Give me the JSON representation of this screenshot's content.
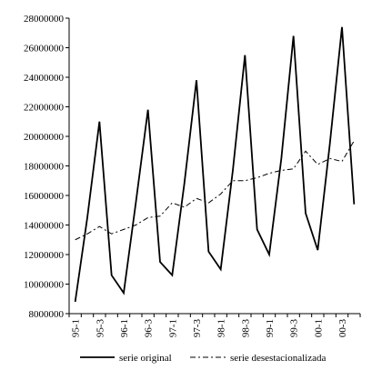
{
  "chart_data": {
    "type": "line",
    "title": "",
    "xlabel": "",
    "ylabel": "",
    "ylim": [
      8000000,
      28000000
    ],
    "yticks": [
      8000000,
      10000000,
      12000000,
      14000000,
      16000000,
      18000000,
      20000000,
      22000000,
      24000000,
      26000000,
      28000000
    ],
    "ytick_labels": [
      "8000000",
      "10000000",
      "12000000",
      "14000000",
      "16000000",
      "18000000",
      "20000000",
      "22000000",
      "24000000",
      "26000000",
      "28000000"
    ],
    "x": [
      "95-1",
      "95-2",
      "95-3",
      "95-4",
      "96-1",
      "96-2",
      "96-3",
      "96-4",
      "97-1",
      "97-2",
      "97-3",
      "97-4",
      "98-1",
      "98-2",
      "98-3",
      "98-4",
      "99-1",
      "99-2",
      "99-3",
      "99-4",
      "00-1",
      "00-2",
      "00-3",
      "00-4"
    ],
    "xtick_labels": [
      "95-1",
      "95-3",
      "96-1",
      "96-3",
      "97-1",
      "97-3",
      "98-1",
      "98-3",
      "99-1",
      "99-3",
      "00-1",
      "00-3"
    ],
    "grid": false,
    "legend_position": "bottom",
    "series": [
      {
        "name": "serie original",
        "style": "solid",
        "color": "#000000",
        "values": [
          8800000,
          14500000,
          21000000,
          10600000,
          9400000,
          15500000,
          21800000,
          11500000,
          10600000,
          16800000,
          23800000,
          12200000,
          11000000,
          17700000,
          25500000,
          13700000,
          12000000,
          18500000,
          26800000,
          14800000,
          12300000,
          19500000,
          27400000,
          15400000
        ]
      },
      {
        "name": "serie desestacionalizada",
        "style": "dashdot",
        "color": "#000000",
        "values": [
          13000000,
          13400000,
          13900000,
          13400000,
          13700000,
          14000000,
          14500000,
          14600000,
          15500000,
          15200000,
          15800000,
          15500000,
          16100000,
          17000000,
          17000000,
          17200000,
          17500000,
          17700000,
          17800000,
          19000000,
          18100000,
          18500000,
          18300000,
          19700000
        ]
      }
    ]
  }
}
